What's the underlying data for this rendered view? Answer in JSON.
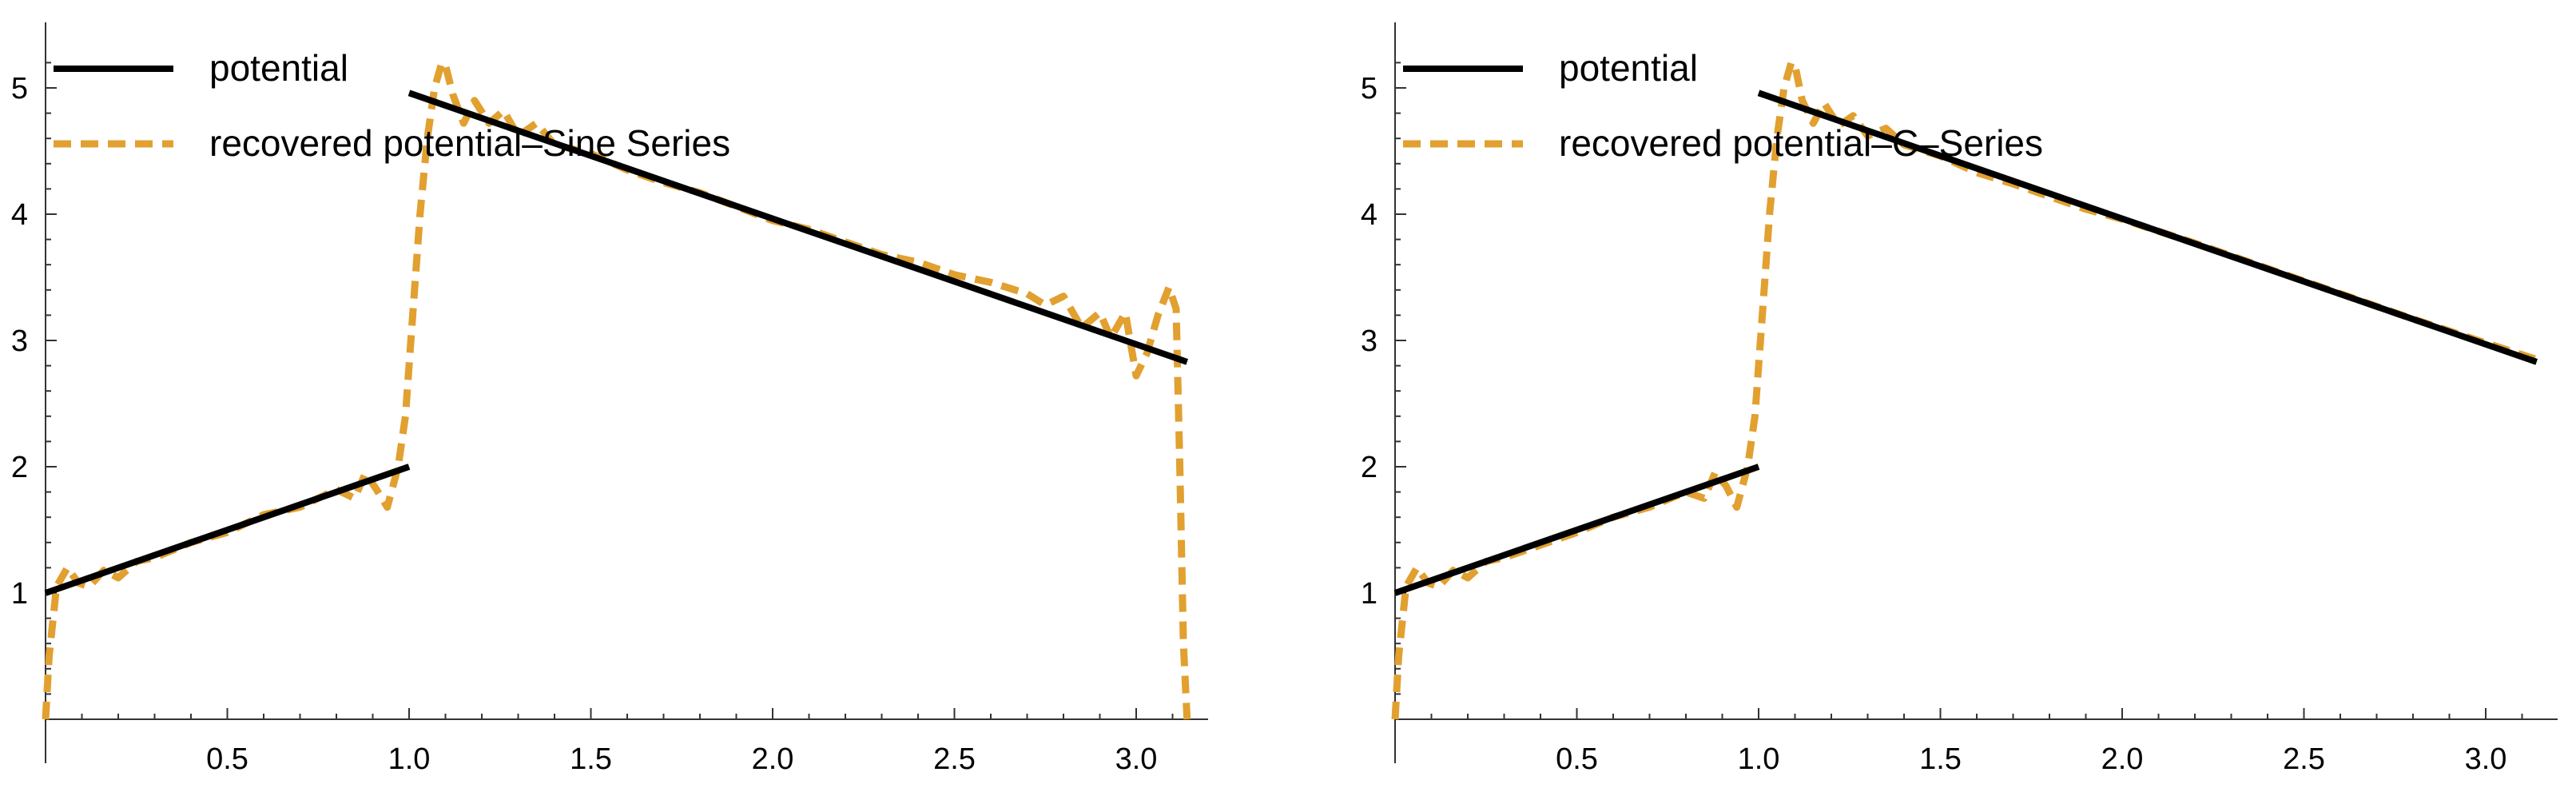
{
  "chart_data": [
    {
      "type": "line",
      "title": "",
      "xlabel": "",
      "ylabel": "",
      "xlim": [
        0,
        3.2
      ],
      "ylim": [
        0,
        5.4
      ],
      "x_ticks": [
        0.5,
        1.0,
        1.5,
        2.0,
        2.5,
        3.0
      ],
      "x_tick_labels": [
        "0.5",
        "1.0",
        "1.5",
        "2.0",
        "2.5",
        "3.0"
      ],
      "y_ticks": [
        1,
        2,
        3,
        4,
        5
      ],
      "y_tick_labels": [
        "1",
        "2",
        "3",
        "4",
        "5"
      ],
      "grid": false,
      "legend_position": "top-left",
      "series": [
        {
          "name": "potential",
          "color": "#000000",
          "style": "solid",
          "segments": [
            {
              "x": [
                0,
                1.0
              ],
              "y": [
                1.0,
                2.0
              ]
            },
            {
              "x": [
                1.0,
                3.14
              ],
              "y": [
                4.96,
                2.83
              ]
            }
          ]
        },
        {
          "name": "recovered potential–Sine Series",
          "color": "#e1a02f",
          "style": "dashed",
          "x": [
            0,
            0.01,
            0.03,
            0.06,
            0.09,
            0.12,
            0.16,
            0.2,
            0.25,
            0.3,
            0.4,
            0.5,
            0.6,
            0.7,
            0.8,
            0.85,
            0.88,
            0.91,
            0.94,
            0.97,
            0.99,
            1.01,
            1.03,
            1.05,
            1.07,
            1.09,
            1.1,
            1.12,
            1.15,
            1.18,
            1.22,
            1.26,
            1.3,
            1.35,
            1.4,
            1.5,
            1.6,
            1.7,
            1.8,
            1.9,
            2.0,
            2.1,
            2.2,
            2.3,
            2.4,
            2.5,
            2.6,
            2.7,
            2.75,
            2.8,
            2.85,
            2.9,
            2.93,
            2.97,
            3.0,
            3.03,
            3.06,
            3.09,
            3.11,
            3.12,
            3.13,
            3.14
          ],
          "y": [
            0.0,
            0.5,
            1.05,
            1.2,
            1.08,
            1.05,
            1.18,
            1.12,
            1.25,
            1.28,
            1.4,
            1.48,
            1.62,
            1.68,
            1.82,
            1.75,
            1.95,
            1.82,
            1.68,
            2.0,
            2.4,
            3.2,
            4.0,
            4.6,
            5.0,
            5.2,
            5.18,
            4.95,
            4.72,
            4.9,
            4.72,
            4.82,
            4.62,
            4.72,
            4.55,
            4.48,
            4.35,
            4.25,
            4.17,
            4.06,
            3.95,
            3.88,
            3.78,
            3.68,
            3.62,
            3.52,
            3.46,
            3.37,
            3.28,
            3.35,
            3.1,
            3.22,
            3.02,
            3.22,
            2.72,
            2.9,
            3.2,
            3.42,
            3.25,
            2.0,
            0.6,
            0.0
          ]
        }
      ]
    },
    {
      "type": "line",
      "title": "",
      "xlabel": "",
      "ylabel": "",
      "xlim": [
        0,
        3.2
      ],
      "ylim": [
        0,
        5.4
      ],
      "x_ticks": [
        0.5,
        1.0,
        1.5,
        2.0,
        2.5,
        3.0
      ],
      "x_tick_labels": [
        "0.5",
        "1.0",
        "1.5",
        "2.0",
        "2.5",
        "3.0"
      ],
      "y_ticks": [
        1,
        2,
        3,
        4,
        5
      ],
      "y_tick_labels": [
        "1",
        "2",
        "3",
        "4",
        "5"
      ],
      "grid": false,
      "legend_position": "top-left",
      "series": [
        {
          "name": "potential",
          "color": "#000000",
          "style": "solid",
          "segments": [
            {
              "x": [
                0,
                1.0
              ],
              "y": [
                1.0,
                2.0
              ]
            },
            {
              "x": [
                1.0,
                3.14
              ],
              "y": [
                4.96,
                2.83
              ]
            }
          ]
        },
        {
          "name": "recovered potential–C–Series",
          "color": "#e1a02f",
          "style": "dashed",
          "x": [
            0,
            0.01,
            0.03,
            0.06,
            0.09,
            0.12,
            0.16,
            0.2,
            0.25,
            0.3,
            0.4,
            0.5,
            0.6,
            0.7,
            0.8,
            0.85,
            0.88,
            0.91,
            0.94,
            0.97,
            0.99,
            1.01,
            1.03,
            1.05,
            1.07,
            1.09,
            1.1,
            1.12,
            1.15,
            1.18,
            1.22,
            1.26,
            1.3,
            1.35,
            1.4,
            1.5,
            1.6,
            1.7,
            1.8,
            1.9,
            2.0,
            2.2,
            2.4,
            2.6,
            2.8,
            3.0,
            3.14
          ],
          "y": [
            0.0,
            0.5,
            1.05,
            1.2,
            1.08,
            1.05,
            1.18,
            1.12,
            1.25,
            1.28,
            1.38,
            1.48,
            1.6,
            1.68,
            1.8,
            1.75,
            1.95,
            1.85,
            1.68,
            2.0,
            2.4,
            3.2,
            4.0,
            4.6,
            5.0,
            5.2,
            5.18,
            4.9,
            4.72,
            4.88,
            4.7,
            4.78,
            4.62,
            4.68,
            4.55,
            4.46,
            4.33,
            4.24,
            4.14,
            4.04,
            3.96,
            3.77,
            3.57,
            3.37,
            3.17,
            2.98,
            2.85
          ]
        }
      ]
    }
  ]
}
